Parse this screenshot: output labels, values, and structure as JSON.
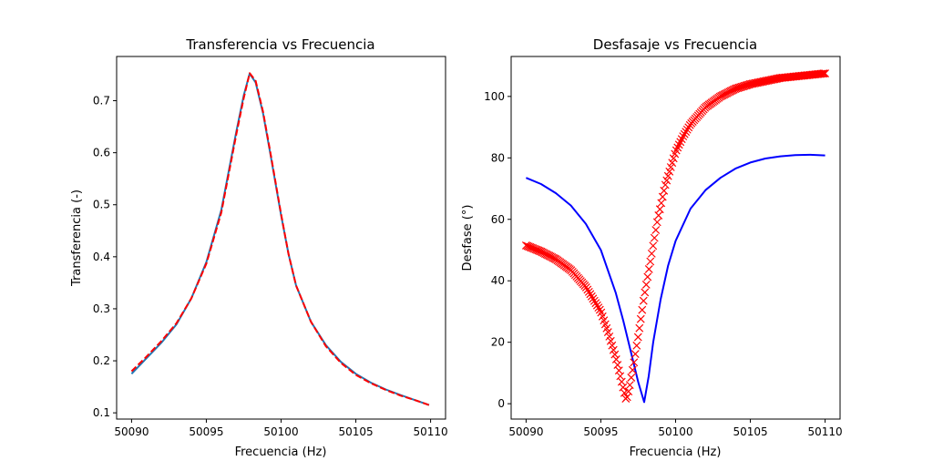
{
  "chart_data": [
    {
      "type": "line",
      "title": "Transferencia vs Frecuencia",
      "xlabel": "Frecuencia (Hz)",
      "ylabel": "Transferencia (-)",
      "xlim": [
        50089,
        50111
      ],
      "ylim": [
        0.088,
        0.785
      ],
      "xticks": [
        50090,
        50095,
        50100,
        50105,
        50110
      ],
      "yticks": [
        0.1,
        0.2,
        0.3,
        0.4,
        0.5,
        0.6,
        0.7
      ],
      "xtick_labels": [
        "50090",
        "50095",
        "50100",
        "50105",
        "50110"
      ],
      "ytick_labels": [
        "0.1",
        "0.2",
        "0.3",
        "0.4",
        "0.5",
        "0.6",
        "0.7"
      ],
      "grid": false,
      "series": [
        {
          "color": "#1f77b4",
          "style": "solid",
          "x": [
            50090,
            50091,
            50092,
            50093,
            50094,
            50095,
            50096,
            50096.5,
            50097,
            50097.5,
            50097.9,
            50098.3,
            50098.8,
            50099.3,
            50100,
            50100.5,
            50101,
            50102,
            50103,
            50104,
            50105,
            50106,
            50107,
            50108,
            50109,
            50109.9
          ],
          "y": [
            0.175,
            0.205,
            0.235,
            0.27,
            0.32,
            0.39,
            0.49,
            0.565,
            0.64,
            0.71,
            0.752,
            0.735,
            0.675,
            0.595,
            0.48,
            0.405,
            0.345,
            0.275,
            0.23,
            0.198,
            0.175,
            0.158,
            0.145,
            0.134,
            0.124,
            0.115
          ]
        },
        {
          "color": "#ff0000",
          "style": "dashed",
          "x": [
            50090,
            50091,
            50092,
            50093,
            50094,
            50095,
            50096,
            50096.5,
            50097,
            50097.5,
            50097.9,
            50098.3,
            50098.8,
            50099.3,
            50100,
            50100.5,
            50101,
            50102,
            50103,
            50104,
            50105,
            50106,
            50107,
            50108,
            50109,
            50109.9
          ],
          "y": [
            0.18,
            0.208,
            0.238,
            0.272,
            0.32,
            0.387,
            0.485,
            0.56,
            0.635,
            0.705,
            0.753,
            0.738,
            0.678,
            0.598,
            0.482,
            0.405,
            0.345,
            0.275,
            0.228,
            0.196,
            0.173,
            0.157,
            0.144,
            0.133,
            0.124,
            0.115
          ]
        }
      ]
    },
    {
      "type": "line",
      "title": "Desfasaje vs Frecuencia",
      "xlabel": "Frecuencia (Hz)",
      "ylabel": "Desfase (°)",
      "xlim": [
        50089,
        50111
      ],
      "ylim": [
        -5,
        113
      ],
      "xticks": [
        50090,
        50095,
        50100,
        50105,
        50110
      ],
      "yticks": [
        0,
        20,
        40,
        60,
        80,
        100
      ],
      "xtick_labels": [
        "50090",
        "50095",
        "50100",
        "50105",
        "50110"
      ],
      "ytick_labels": [
        "0",
        "20",
        "40",
        "60",
        "80",
        "100"
      ],
      "grid": false,
      "series": [
        {
          "color": "#0000ff",
          "style": "solid",
          "x": [
            50090,
            50091,
            50092,
            50093,
            50094,
            50095,
            50096,
            50096.5,
            50097,
            50097.5,
            50097.9,
            50098.2,
            50098.5,
            50099,
            50099.5,
            50100,
            50101,
            50102,
            50103,
            50104,
            50105,
            50106,
            50107,
            50108,
            50109,
            50110
          ],
          "y": [
            73.5,
            71.5,
            68.5,
            64.5,
            58.5,
            50,
            36,
            27,
            17,
            7,
            0.5,
            9,
            20,
            34,
            45,
            53,
            63.5,
            69.5,
            73.5,
            76.5,
            78.5,
            79.8,
            80.5,
            80.9,
            81,
            80.8
          ]
        },
        {
          "color": "#ff0000",
          "style": "x-markers",
          "marker_count": 220,
          "x": [
            50090,
            50091,
            50092,
            50093,
            50094,
            50095,
            50095.5,
            50096,
            50096.5,
            50096.7,
            50096.9,
            50097.2,
            50097.5,
            50097.9,
            50098.3,
            50098.8,
            50099.3,
            50100,
            50100.5,
            50101,
            50102,
            50103,
            50104,
            50105,
            50106,
            50107,
            50108,
            50109,
            50110
          ],
          "y": [
            51.5,
            49.5,
            47,
            43.5,
            38,
            30,
            23,
            15,
            5,
            1,
            5,
            13,
            22,
            35,
            46,
            60,
            71,
            82,
            87,
            91,
            96.5,
            100,
            102.5,
            104,
            105,
            106,
            106.5,
            107,
            107.5
          ]
        }
      ]
    }
  ]
}
